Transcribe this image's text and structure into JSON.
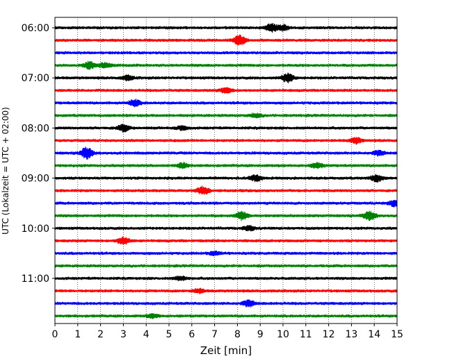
{
  "chart_data": {
    "type": "line",
    "title": "",
    "xlabel": "Zeit  [min]",
    "ylabel": "UTC (Lokalzeit = UTC + 02:00)",
    "xlim": [
      0,
      15
    ],
    "x_ticks": [
      "0",
      "1",
      "2",
      "3",
      "4",
      "5",
      "6",
      "7",
      "8",
      "9",
      "10",
      "11",
      "12",
      "13",
      "14",
      "15"
    ],
    "y_ticks": [
      "06:00",
      "07:00",
      "08:00",
      "09:00",
      "10:00",
      "11:00"
    ],
    "grid": "vertical dotted lines at each minute",
    "trace_interval_minutes": 15,
    "trace_colors": [
      "#000000",
      "#ff0000",
      "#0000ff",
      "#008000"
    ],
    "traces": [
      {
        "start": "06:00",
        "color": "#000000",
        "events": [
          {
            "t": 9.5,
            "amp": 1.8
          },
          {
            "t": 10.0,
            "amp": 1.2
          }
        ]
      },
      {
        "start": "06:15",
        "color": "#ff0000",
        "events": [
          {
            "t": 8.1,
            "amp": 2.2
          }
        ]
      },
      {
        "start": "06:30",
        "color": "#0000ff",
        "events": []
      },
      {
        "start": "06:45",
        "color": "#008000",
        "events": [
          {
            "t": 1.5,
            "amp": 1.6
          },
          {
            "t": 2.2,
            "amp": 1.2
          }
        ]
      },
      {
        "start": "07:00",
        "color": "#000000",
        "events": [
          {
            "t": 10.2,
            "amp": 2.0
          },
          {
            "t": 3.2,
            "amp": 1.0
          }
        ]
      },
      {
        "start": "07:15",
        "color": "#ff0000",
        "events": [
          {
            "t": 7.5,
            "amp": 1.2
          }
        ]
      },
      {
        "start": "07:30",
        "color": "#0000ff",
        "events": [
          {
            "t": 3.5,
            "amp": 1.4
          }
        ]
      },
      {
        "start": "07:45",
        "color": "#008000",
        "events": [
          {
            "t": 8.8,
            "amp": 0.8
          }
        ]
      },
      {
        "start": "08:00",
        "color": "#000000",
        "events": [
          {
            "t": 3.0,
            "amp": 1.5
          },
          {
            "t": 5.6,
            "amp": 0.9
          }
        ]
      },
      {
        "start": "08:15",
        "color": "#ff0000",
        "events": [
          {
            "t": 13.2,
            "amp": 1.3
          }
        ]
      },
      {
        "start": "08:30",
        "color": "#0000ff",
        "events": [
          {
            "t": 1.4,
            "amp": 2.6
          },
          {
            "t": 14.2,
            "amp": 1.0
          }
        ]
      },
      {
        "start": "08:45",
        "color": "#008000",
        "events": [
          {
            "t": 5.6,
            "amp": 1.2
          },
          {
            "t": 11.5,
            "amp": 1.1
          }
        ]
      },
      {
        "start": "09:00",
        "color": "#000000",
        "events": [
          {
            "t": 8.8,
            "amp": 1.3
          },
          {
            "t": 14.1,
            "amp": 1.6
          }
        ]
      },
      {
        "start": "09:15",
        "color": "#ff0000",
        "events": [
          {
            "t": 6.5,
            "amp": 1.8
          }
        ]
      },
      {
        "start": "09:30",
        "color": "#0000ff",
        "events": [
          {
            "t": 14.9,
            "amp": 1.5
          }
        ]
      },
      {
        "start": "09:45",
        "color": "#008000",
        "events": [
          {
            "t": 8.2,
            "amp": 1.8
          },
          {
            "t": 13.8,
            "amp": 2.0
          }
        ]
      },
      {
        "start": "10:00",
        "color": "#000000",
        "events": [
          {
            "t": 8.5,
            "amp": 1.0
          }
        ]
      },
      {
        "start": "10:15",
        "color": "#ff0000",
        "events": [
          {
            "t": 3.0,
            "amp": 1.7
          }
        ]
      },
      {
        "start": "10:30",
        "color": "#0000ff",
        "events": [
          {
            "t": 7.0,
            "amp": 0.8
          }
        ]
      },
      {
        "start": "10:45",
        "color": "#008000",
        "events": []
      },
      {
        "start": "11:00",
        "color": "#000000",
        "events": [
          {
            "t": 5.5,
            "amp": 0.9
          }
        ]
      },
      {
        "start": "11:15",
        "color": "#ff0000",
        "events": [
          {
            "t": 6.3,
            "amp": 0.9
          }
        ]
      },
      {
        "start": "11:30",
        "color": "#0000ff",
        "events": [
          {
            "t": 8.5,
            "amp": 1.4
          }
        ]
      },
      {
        "start": "11:45",
        "color": "#008000",
        "events": [
          {
            "t": 4.3,
            "amp": 0.8
          }
        ]
      }
    ]
  }
}
